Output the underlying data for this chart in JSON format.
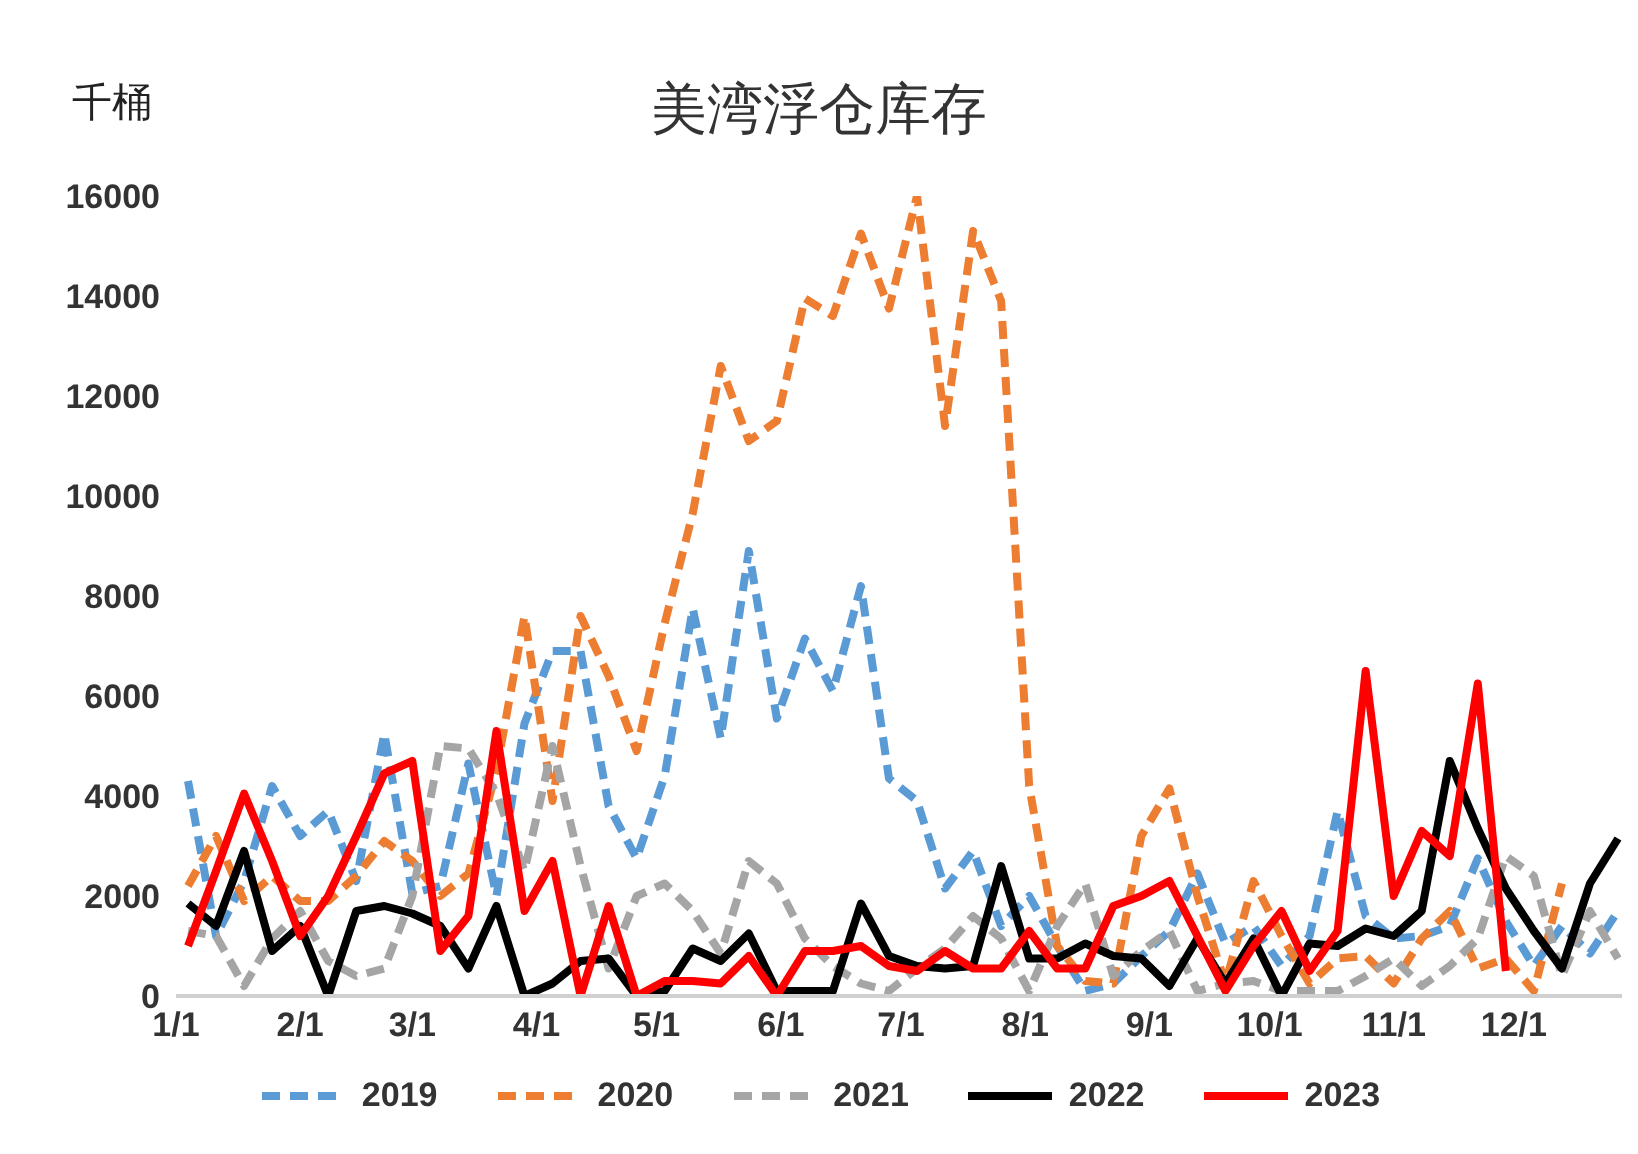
{
  "chart_data": {
    "type": "line",
    "title": "美湾浮仓库存",
    "ylabel": "千桶",
    "x": [
      "--01-04",
      "--01-11",
      "--01-18",
      "--01-25",
      "--02-01",
      "--02-08",
      "--02-15",
      "--02-22",
      "--03-01",
      "--03-08",
      "--03-15",
      "--03-22",
      "--03-29",
      "--04-05",
      "--04-12",
      "--04-19",
      "--04-26",
      "--05-03",
      "--05-10",
      "--05-17",
      "--05-24",
      "--05-31",
      "--06-07",
      "--06-14",
      "--06-21",
      "--06-28",
      "--07-05",
      "--07-12",
      "--07-19",
      "--07-26",
      "--08-02",
      "--08-09",
      "--08-16",
      "--08-23",
      "--08-30",
      "--09-06",
      "--09-13",
      "--09-20",
      "--09-27",
      "--10-04",
      "--10-11",
      "--10-18",
      "--10-25",
      "--11-01",
      "--11-08",
      "--11-15",
      "--11-22",
      "--11-29",
      "--12-06",
      "--12-13",
      "--12-20",
      "--12-27"
    ],
    "series": [
      {
        "name": "2019",
        "color": "#5b9bd5",
        "line_style": "dashed",
        "values": [
          4300,
          1200,
          2300,
          4200,
          3200,
          3700,
          2300,
          5250,
          2050,
          2200,
          4650,
          2000,
          5450,
          6900,
          6900,
          3800,
          2750,
          4400,
          7750,
          5150,
          8900,
          5550,
          7150,
          6100,
          8200,
          4350,
          3900,
          2150,
          2900,
          1400,
          2000,
          1000,
          100,
          250,
          800,
          1300,
          2450,
          1050,
          1400,
          600,
          1200,
          3700,
          1600,
          1150,
          1200,
          1400,
          2750,
          1500,
          600,
          1400,
          850,
          1700
        ]
      },
      {
        "name": "2020",
        "color": "#ed7d31",
        "line_style": "dashed",
        "values": [
          2200,
          3200,
          1900,
          2400,
          1900,
          1900,
          2400,
          3100,
          2700,
          2000,
          2450,
          4500,
          7600,
          3900,
          7600,
          6400,
          4900,
          7450,
          9650,
          12600,
          11100,
          11500,
          13950,
          13600,
          15250,
          13750,
          16000,
          11400,
          15300,
          13900,
          4200,
          1000,
          300,
          250,
          3200,
          4150,
          2000,
          250,
          2300,
          1200,
          250,
          750,
          800,
          250,
          1150,
          1700,
          550,
          750,
          100,
          2250,
          null,
          null
        ]
      },
      {
        "name": "2021",
        "color": "#a5a5a5",
        "line_style": "dashed",
        "values": [
          1300,
          1200,
          200,
          1150,
          1700,
          700,
          400,
          550,
          2000,
          5000,
          4950,
          4050,
          2500,
          5000,
          2600,
          550,
          2000,
          2250,
          1700,
          850,
          2700,
          2250,
          1150,
          600,
          250,
          100,
          550,
          950,
          1600,
          1150,
          100,
          1400,
          2250,
          400,
          900,
          1300,
          100,
          250,
          300,
          100,
          100,
          100,
          400,
          750,
          200,
          600,
          1150,
          2800,
          2400,
          400,
          1700,
          750
        ]
      },
      {
        "name": "2022",
        "color": "#000000",
        "line_style": "solid",
        "values": [
          1850,
          1400,
          2900,
          900,
          1400,
          0,
          1700,
          1800,
          1650,
          1400,
          550,
          1800,
          0,
          250,
          700,
          750,
          0,
          100,
          950,
          700,
          1250,
          100,
          100,
          100,
          1850,
          800,
          600,
          550,
          600,
          2600,
          750,
          750,
          1050,
          800,
          750,
          200,
          1150,
          250,
          1150,
          0,
          1050,
          1000,
          1350,
          1200,
          1700,
          4700,
          3350,
          2150,
          1300,
          550,
          2250,
          3150
        ]
      },
      {
        "name": "2023",
        "color": "#ff0000",
        "line_style": "solid",
        "values": [
          1000,
          2500,
          4050,
          2700,
          1200,
          2000,
          3200,
          4450,
          4700,
          900,
          1600,
          5300,
          1700,
          2700,
          0,
          1800,
          0,
          300,
          300,
          250,
          800,
          0,
          900,
          900,
          1000,
          600,
          500,
          900,
          550,
          550,
          1300,
          550,
          550,
          1800,
          2000,
          2300,
          1200,
          100,
          1000,
          1700,
          500,
          1300,
          6500,
          2000,
          3300,
          2800,
          6250,
          500,
          null,
          null,
          null,
          null
        ]
      }
    ],
    "xlim": [
      "--01-01",
      "--12-28"
    ],
    "xticks": [
      {
        "value": "--01-01",
        "label": "1/1"
      },
      {
        "value": "--02-01",
        "label": "2/1"
      },
      {
        "value": "--03-01",
        "label": "3/1"
      },
      {
        "value": "--04-01",
        "label": "4/1"
      },
      {
        "value": "--05-01",
        "label": "5/1"
      },
      {
        "value": "--06-01",
        "label": "6/1"
      },
      {
        "value": "--07-01",
        "label": "7/1"
      },
      {
        "value": "--08-01",
        "label": "8/1"
      },
      {
        "value": "--09-01",
        "label": "9/1"
      },
      {
        "value": "--10-01",
        "label": "10/1"
      },
      {
        "value": "--11-01",
        "label": "11/1"
      },
      {
        "value": "--12-01",
        "label": "12/1"
      }
    ],
    "ylim": [
      0,
      16000
    ],
    "yticks": [
      0,
      2000,
      4000,
      6000,
      8000,
      10000,
      12000,
      14000,
      16000
    ],
    "grid": false,
    "legend": "bottom",
    "marker": "none"
  }
}
